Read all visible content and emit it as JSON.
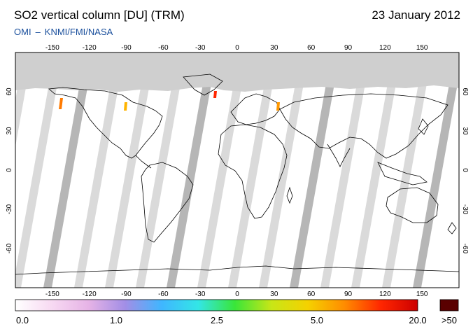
{
  "header": {
    "title": "SO2 vertical column [DU] (TRM)",
    "date": "23 January 2012",
    "credit_left": "OMI",
    "credit_sep": "–",
    "credit_right": "KNMI/FMI/NASA"
  },
  "map": {
    "projection": "equirectangular",
    "lon_ticks": [
      -150,
      -120,
      -90,
      -60,
      -30,
      0,
      30,
      60,
      90,
      120,
      150
    ],
    "lat_ticks": [
      60,
      30,
      0,
      -30,
      -60
    ],
    "lon_range": [
      -180,
      180
    ],
    "lat_range": [
      -90,
      90
    ],
    "colors": {
      "ocean": "#ffffff",
      "land_outline": "#000000",
      "no_data_polar": "#cfcfcf",
      "orbit_gap": "#d3d3d3",
      "orbit_dark": "#a9a9a9"
    }
  },
  "colorbar": {
    "labels": [
      "0.0",
      "1.0",
      "2.5",
      "5.0",
      "20.0"
    ],
    "overflow_label": ">50",
    "overflow_color": "#5a0000",
    "gradient_colors": [
      "#ffffff",
      "#f7d9f2",
      "#e6b3e6",
      "#a28ee6",
      "#3fb6ff",
      "#33e6e6",
      "#39e639",
      "#c8e617",
      "#f5d100",
      "#ff8c00",
      "#ff2600",
      "#cc0000"
    ]
  }
}
